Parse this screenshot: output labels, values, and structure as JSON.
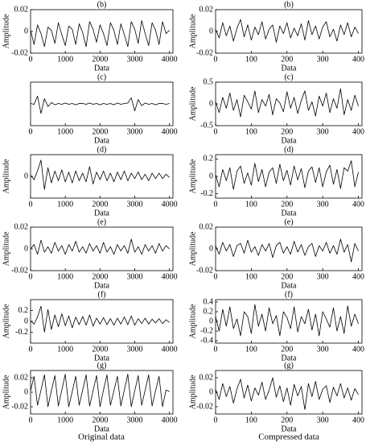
{
  "chart_data": [
    {
      "type": "line",
      "title": "(b)",
      "xlabel": "Data",
      "ylabel": "Amplitude",
      "x": [
        0,
        100,
        200,
        300,
        400,
        500,
        600,
        700,
        800,
        900,
        1000,
        1100,
        1200,
        1300,
        1400,
        1500,
        1600,
        1700,
        1800,
        1900,
        2000,
        2100,
        2200,
        2300,
        2400,
        2500,
        2600,
        2700,
        2800,
        2900,
        3000,
        3100,
        3200,
        3300,
        3400,
        3500,
        3600,
        3700,
        3800,
        3900,
        4000
      ],
      "values": [
        0.001,
        -0.012,
        0.006,
        -0.002,
        -0.014,
        0.004,
        0.001,
        -0.011,
        0.008,
        -0.003,
        -0.013,
        0.005,
        0.002,
        -0.012,
        0.007,
        -0.001,
        -0.014,
        0.009,
        0.002,
        -0.01,
        0.006,
        -0.002,
        -0.013,
        0.008,
        0.001,
        -0.012,
        0.007,
        -0.003,
        -0.014,
        0.009,
        0.002,
        -0.011,
        0.01,
        -0.002,
        -0.013,
        0.008,
        0.001,
        -0.012,
        0.009,
        -0.002,
        0.001
      ],
      "color": "#000000",
      "xlim": [
        0,
        4100
      ],
      "xticks": [
        0,
        1000,
        2000,
        3000,
        4000
      ],
      "ylim": [
        -0.02,
        0.02
      ],
      "yticks": [
        -0.02,
        0,
        0.02
      ]
    },
    {
      "type": "line",
      "title": "(b)",
      "xlabel": "Data",
      "ylabel": "Amplitude",
      "x": [
        0,
        10,
        20,
        30,
        40,
        50,
        60,
        70,
        80,
        90,
        100,
        110,
        120,
        130,
        140,
        150,
        160,
        170,
        180,
        190,
        200,
        210,
        220,
        230,
        240,
        250,
        260,
        270,
        280,
        290,
        300,
        310,
        320,
        330,
        340,
        350,
        360,
        370,
        380,
        390,
        400
      ],
      "values": [
        0.002,
        -0.006,
        0.008,
        -0.004,
        0.005,
        -0.009,
        0.003,
        0.011,
        -0.005,
        0.006,
        -0.008,
        0.004,
        -0.003,
        0.009,
        -0.007,
        0.002,
        0.006,
        -0.01,
        0.005,
        -0.002,
        0.008,
        -0.006,
        0.003,
        -0.004,
        0.007,
        -0.008,
        0.01,
        -0.003,
        0.005,
        -0.007,
        0.004,
        0.009,
        -0.005,
        0.002,
        -0.009,
        0.006,
        -0.003,
        0.008,
        -0.005,
        0.004,
        -0.002
      ],
      "color": "#000000",
      "xlim": [
        0,
        410
      ],
      "xticks": [
        0,
        100,
        200,
        300,
        400
      ],
      "ylim": [
        -0.02,
        0.02
      ],
      "yticks": [
        -0.02,
        0,
        0.02
      ]
    },
    {
      "type": "line",
      "title": "(c)",
      "xlabel": "Data",
      "x": [
        0,
        100,
        200,
        300,
        400,
        500,
        600,
        700,
        800,
        900,
        1000,
        1100,
        1200,
        1300,
        1400,
        1500,
        1600,
        1700,
        1800,
        1900,
        2000,
        2100,
        2200,
        2300,
        2400,
        2500,
        2600,
        2700,
        2800,
        2900,
        3000,
        3100,
        3200,
        3300,
        3400,
        3500,
        3600,
        3700,
        3800,
        3900,
        4000
      ],
      "values": [
        0.01,
        -0.01,
        0.18,
        -0.22,
        0.12,
        -0.06,
        0.03,
        -0.02,
        0.01,
        -0.01,
        0.02,
        -0.01,
        0.01,
        -0.02,
        0.01,
        0.01,
        -0.01,
        0.02,
        -0.01,
        0.01,
        -0.02,
        0.01,
        -0.01,
        0.01,
        -0.02,
        0.02,
        -0.01,
        0.01,
        0.02,
        0.14,
        -0.16,
        0.1,
        -0.04,
        0.02,
        -0.01,
        0.01,
        -0.02,
        0.01,
        0.01,
        -0.01,
        0.01
      ],
      "color": "#000000",
      "xlim": [
        0,
        4100
      ],
      "xticks": [
        0,
        1000,
        2000,
        3000,
        4000
      ],
      "ylim": [
        -0.5,
        0.5
      ],
      "yticks": []
    },
    {
      "type": "line",
      "title": "(c)",
      "xlabel": "Data",
      "ylabel": "Amplitude",
      "x": [
        0,
        10,
        20,
        30,
        40,
        50,
        60,
        70,
        80,
        90,
        100,
        110,
        120,
        130,
        140,
        150,
        160,
        170,
        180,
        190,
        200,
        210,
        220,
        230,
        240,
        250,
        260,
        270,
        280,
        290,
        300,
        310,
        320,
        330,
        340,
        350,
        360,
        370,
        380,
        390,
        400
      ],
      "values": [
        0.05,
        -0.2,
        0.15,
        -0.1,
        0.25,
        -0.15,
        0.1,
        -0.3,
        0.2,
        0.05,
        -0.12,
        0.3,
        -0.2,
        0.1,
        -0.05,
        0.22,
        -0.25,
        0.12,
        0.02,
        -0.18,
        0.28,
        -0.1,
        0.15,
        -0.22,
        0.08,
        0.3,
        -0.15,
        0.05,
        -0.28,
        0.18,
        -0.05,
        0.25,
        -0.2,
        0.12,
        -0.1,
        0.35,
        -0.25,
        0.1,
        -0.15,
        0.2,
        -0.05
      ],
      "color": "#000000",
      "xlim": [
        0,
        410
      ],
      "xticks": [
        0,
        100,
        200,
        300,
        400
      ],
      "ylim": [
        -0.5,
        0.5
      ],
      "yticks": [
        -0.5,
        0,
        0.5
      ]
    },
    {
      "type": "line",
      "title": "(d)",
      "xlabel": "Data",
      "ylabel": "Amplitude",
      "x": [
        0,
        100,
        200,
        300,
        400,
        500,
        600,
        700,
        800,
        900,
        1000,
        1100,
        1200,
        1300,
        1400,
        1500,
        1600,
        1700,
        1800,
        1900,
        2000,
        2100,
        2200,
        2300,
        2400,
        2500,
        2600,
        2700,
        2800,
        2900,
        3000,
        3100,
        3200,
        3300,
        3400,
        3500,
        3600,
        3700,
        3800,
        3900,
        4000
      ],
      "values": [
        0.01,
        -0.03,
        0.05,
        0.15,
        -0.12,
        0.08,
        -0.06,
        0.05,
        -0.04,
        0.06,
        -0.05,
        0.04,
        -0.06,
        0.05,
        -0.04,
        0.03,
        -0.05,
        0.09,
        -0.07,
        0.04,
        -0.03,
        0.05,
        -0.04,
        0.03,
        -0.05,
        0.04,
        -0.03,
        0.05,
        -0.04,
        0.03,
        -0.02,
        0.04,
        -0.03,
        0.02,
        -0.04,
        0.03,
        -0.02,
        0.03,
        -0.02,
        0.02,
        -0.01
      ],
      "color": "#000000",
      "xlim": [
        0,
        4100
      ],
      "xticks": [
        0,
        1000,
        2000,
        3000,
        4000
      ],
      "ylim": [
        -0.2,
        0.2
      ],
      "yticks": [
        0
      ]
    },
    {
      "type": "line",
      "title": "(d)",
      "xlabel": "Data",
      "ylabel": "Amplitude",
      "x": [
        0,
        10,
        20,
        30,
        40,
        50,
        60,
        70,
        80,
        90,
        100,
        110,
        120,
        130,
        140,
        150,
        160,
        170,
        180,
        190,
        200,
        210,
        220,
        230,
        240,
        250,
        260,
        270,
        280,
        290,
        300,
        310,
        320,
        330,
        340,
        350,
        360,
        370,
        380,
        390,
        400
      ],
      "values": [
        0.02,
        -0.12,
        0.08,
        -0.05,
        0.1,
        -0.15,
        0.06,
        0.12,
        -0.08,
        0.04,
        -0.1,
        0.15,
        -0.06,
        0.08,
        -0.12,
        0.05,
        0.1,
        -0.08,
        0.14,
        -0.05,
        0.07,
        -0.1,
        0.12,
        -0.04,
        0.09,
        -0.13,
        0.06,
        0.11,
        -0.07,
        0.1,
        -0.12,
        0.05,
        0.13,
        -0.09,
        0.08,
        -0.14,
        0.1,
        0.06,
        0.18,
        -0.12,
        0.05
      ],
      "color": "#000000",
      "xlim": [
        0,
        410
      ],
      "xticks": [
        0,
        100,
        200,
        300,
        400
      ],
      "ylim": [
        -0.25,
        0.25
      ],
      "yticks": [
        -0.2,
        0,
        0.2
      ]
    },
    {
      "type": "line",
      "title": "(e)",
      "xlabel": "Data",
      "ylabel": "Amplitude",
      "x": [
        0,
        100,
        200,
        300,
        400,
        500,
        600,
        700,
        800,
        900,
        1000,
        1100,
        1200,
        1300,
        1400,
        1500,
        1600,
        1700,
        1800,
        1900,
        2000,
        2100,
        2200,
        2300,
        2400,
        2500,
        2600,
        2700,
        2800,
        2900,
        3000,
        3100,
        3200,
        3300,
        3400,
        3500,
        3600,
        3700,
        3800,
        3900,
        4000
      ],
      "values": [
        0,
        0.004,
        -0.005,
        0.008,
        -0.003,
        0.002,
        -0.004,
        0.006,
        -0.002,
        0.003,
        -0.005,
        0.004,
        -0.002,
        0.007,
        -0.003,
        0.002,
        -0.004,
        0.005,
        -0.002,
        0.003,
        -0.004,
        0.006,
        -0.003,
        0.002,
        -0.005,
        0.004,
        -0.002,
        0.003,
        -0.004,
        0.009,
        -0.003,
        0.002,
        -0.005,
        0.004,
        -0.002,
        0.003,
        -0.004,
        0.005,
        -0.002,
        0.003,
        0
      ],
      "color": "#000000",
      "xlim": [
        0,
        4100
      ],
      "xticks": [
        0,
        1000,
        2000,
        3000,
        4000
      ],
      "ylim": [
        -0.02,
        0.02
      ],
      "yticks": [
        -0.02,
        0,
        0.02
      ]
    },
    {
      "type": "line",
      "title": "(e)",
      "xlabel": "Data",
      "ylabel": "Amplitude",
      "x": [
        0,
        10,
        20,
        30,
        40,
        50,
        60,
        70,
        80,
        90,
        100,
        110,
        120,
        130,
        140,
        150,
        160,
        170,
        180,
        190,
        200,
        210,
        220,
        230,
        240,
        250,
        260,
        270,
        280,
        290,
        300,
        310,
        320,
        330,
        340,
        350,
        360,
        370,
        380,
        390,
        400
      ],
      "values": [
        0.003,
        -0.005,
        0.006,
        -0.002,
        0.004,
        -0.007,
        0.003,
        0.005,
        -0.004,
        0.008,
        -0.003,
        0.002,
        -0.006,
        0.004,
        -0.002,
        0.005,
        -0.008,
        0.003,
        0.006,
        -0.004,
        0.002,
        -0.005,
        0.007,
        -0.003,
        0.004,
        -0.006,
        0.002,
        0.005,
        -0.007,
        0.003,
        -0.002,
        0.006,
        -0.004,
        0.003,
        -0.005,
        0.009,
        -0.003,
        0.004,
        -0.012,
        0.005,
        -0.002
      ],
      "color": "#000000",
      "xlim": [
        0,
        410
      ],
      "xticks": [
        0,
        100,
        200,
        300,
        400
      ],
      "ylim": [
        -0.02,
        0.02
      ],
      "yticks": [
        -0.02,
        0,
        0.02
      ]
    },
    {
      "type": "line",
      "title": "(f)",
      "xlabel": "Data",
      "ylabel": "Amplitude",
      "x": [
        0,
        100,
        200,
        300,
        400,
        500,
        600,
        700,
        800,
        900,
        1000,
        1100,
        1200,
        1300,
        1400,
        1500,
        1600,
        1700,
        1800,
        1900,
        2000,
        2100,
        2200,
        2300,
        2400,
        2500,
        2600,
        2700,
        2800,
        2900,
        3000,
        3100,
        3200,
        3300,
        3400,
        3500,
        3600,
        3700,
        3800,
        3900,
        4000
      ],
      "values": [
        0.01,
        -0.05,
        0.08,
        0.28,
        -0.2,
        0.22,
        -0.15,
        0.12,
        -0.1,
        0.14,
        -0.08,
        0.1,
        -0.12,
        0.08,
        -0.06,
        0.09,
        -0.07,
        0.12,
        -0.09,
        0.06,
        -0.05,
        0.07,
        -0.06,
        0.05,
        -0.07,
        0.06,
        -0.05,
        0.08,
        -0.06,
        0.1,
        -0.07,
        0.05,
        -0.04,
        0.06,
        -0.05,
        0.04,
        -0.03,
        0.05,
        -0.04,
        0.03,
        -0.02
      ],
      "color": "#000000",
      "xlim": [
        0,
        4100
      ],
      "xticks": [
        0,
        1000,
        2000,
        3000,
        4000
      ],
      "ylim": [
        -0.4,
        0.4
      ],
      "yticks": [
        -0.2,
        0,
        0.2
      ]
    },
    {
      "type": "line",
      "title": "(f)",
      "xlabel": "Data",
      "ylabel": "Amplitude",
      "x": [
        0,
        10,
        20,
        30,
        40,
        50,
        60,
        70,
        80,
        90,
        100,
        110,
        120,
        130,
        140,
        150,
        160,
        170,
        180,
        190,
        200,
        210,
        220,
        230,
        240,
        250,
        260,
        270,
        280,
        290,
        300,
        310,
        320,
        330,
        340,
        350,
        360,
        370,
        380,
        390,
        400
      ],
      "values": [
        0.1,
        -0.2,
        0.25,
        -0.1,
        0.3,
        -0.15,
        0.05,
        -0.3,
        0.2,
        0.1,
        -0.25,
        0.35,
        -0.1,
        0.15,
        -0.2,
        0.28,
        -0.05,
        0.12,
        -0.3,
        0.2,
        0.08,
        -0.15,
        0.3,
        -0.22,
        0.1,
        -0.05,
        0.25,
        -0.18,
        0.15,
        -0.3,
        0.2,
        0.05,
        -0.12,
        0.28,
        -0.2,
        0.1,
        -0.25,
        0.32,
        -0.1,
        0.15,
        -0.05
      ],
      "color": "#000000",
      "xlim": [
        0,
        410
      ],
      "xticks": [
        0,
        100,
        200,
        300,
        400
      ],
      "ylim": [
        -0.45,
        0.45
      ],
      "yticks": [
        -0.4,
        -0.2,
        0,
        0.2,
        0.4
      ]
    },
    {
      "type": "line",
      "title": "(g)",
      "xlabel": "Data",
      "ylabel": "Amplitude",
      "x": [
        0,
        100,
        200,
        300,
        400,
        500,
        600,
        700,
        800,
        900,
        1000,
        1100,
        1200,
        1300,
        1400,
        1500,
        1600,
        1700,
        1800,
        1900,
        2000,
        2100,
        2200,
        2300,
        2400,
        2500,
        2600,
        2700,
        2800,
        2900,
        3000,
        3100,
        3200,
        3300,
        3400,
        3500,
        3600,
        3700,
        3800,
        3900,
        4000
      ],
      "values": [
        0.002,
        0.022,
        -0.018,
        0.003,
        0.024,
        -0.02,
        0.002,
        0.023,
        -0.019,
        0.003,
        0.025,
        -0.02,
        0.001,
        0.022,
        -0.018,
        0.003,
        0.024,
        -0.019,
        0.002,
        0.023,
        -0.02,
        0.003,
        0.024,
        -0.018,
        0.002,
        0.022,
        -0.019,
        0.003,
        0.025,
        -0.02,
        0.002,
        0.023,
        -0.018,
        0.003,
        0.024,
        -0.019,
        0.002,
        0.022,
        -0.02,
        0.003,
        0.001
      ],
      "color": "#000000",
      "xlim": [
        0,
        4100
      ],
      "xticks": [
        0,
        1000,
        2000,
        3000,
        4000
      ],
      "ylim": [
        -0.03,
        0.03
      ],
      "yticks": [
        -0.02,
        0,
        0.02
      ]
    },
    {
      "type": "line",
      "title": "(g)",
      "xlabel": "Data",
      "ylabel": "Amplitude",
      "x": [
        0,
        10,
        20,
        30,
        40,
        50,
        60,
        70,
        80,
        90,
        100,
        110,
        120,
        130,
        140,
        150,
        160,
        170,
        180,
        190,
        200,
        210,
        220,
        230,
        240,
        250,
        260,
        270,
        280,
        290,
        300,
        310,
        320,
        330,
        340,
        350,
        360,
        370,
        380,
        390,
        400
      ],
      "values": [
        0.004,
        -0.01,
        0.012,
        -0.006,
        0.008,
        -0.015,
        0.005,
        0.018,
        -0.008,
        0.01,
        -0.012,
        0.006,
        -0.004,
        0.014,
        -0.01,
        0.003,
        0.02,
        -0.007,
        0.009,
        -0.013,
        0.006,
        -0.018,
        0.011,
        -0.005,
        0.008,
        -0.024,
        0.012,
        -0.006,
        0.015,
        -0.01,
        0.004,
        0.009,
        -0.014,
        0.007,
        -0.005,
        0.012,
        -0.008,
        0.006,
        -0.011,
        0.005,
        -0.003
      ],
      "color": "#000000",
      "xlim": [
        0,
        410
      ],
      "xticks": [
        0,
        100,
        200,
        300,
        400
      ],
      "ylim": [
        -0.03,
        0.03
      ],
      "yticks": [
        -0.02,
        0,
        0.02
      ]
    }
  ],
  "captions": [
    "Original data",
    "Compressed data"
  ]
}
